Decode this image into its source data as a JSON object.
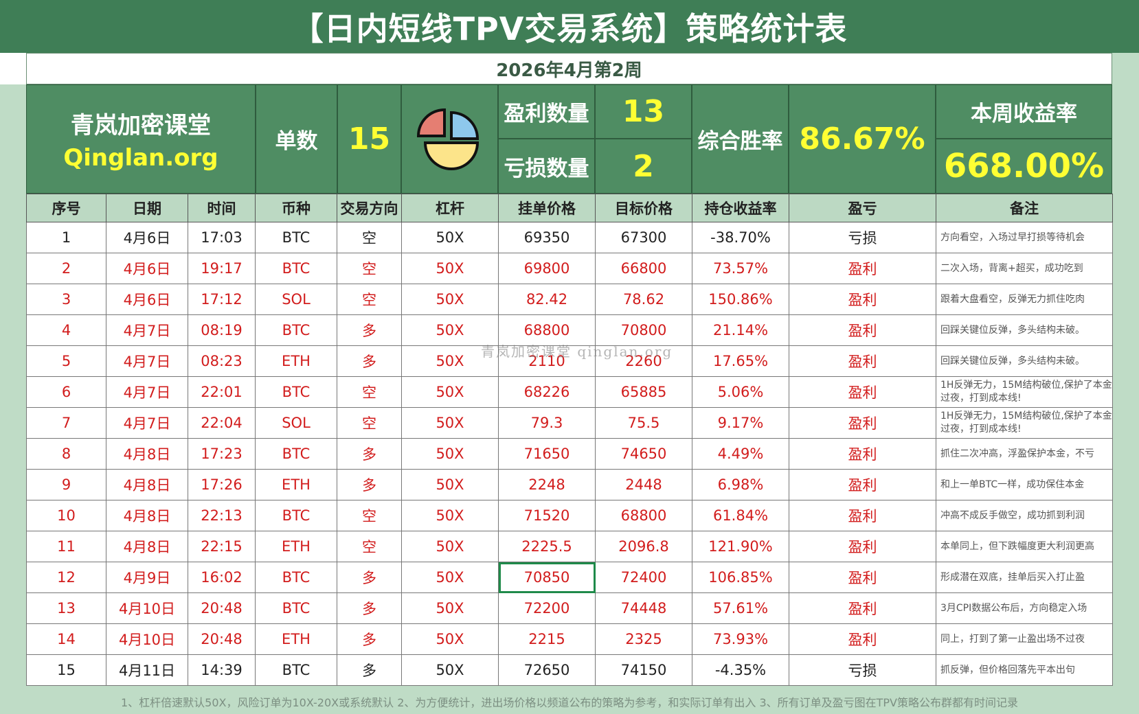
{
  "title": "【日内短线TPV交易系统】策略统计表",
  "week": "2026年4月第2周",
  "summary": {
    "brand_cn": "青岚加密课堂",
    "brand_en": "Qinglan.org",
    "orders_label": "单数",
    "orders_value": "15",
    "profit_count_label": "盈利数量",
    "profit_count_value": "13",
    "loss_count_label": "亏损数量",
    "loss_count_value": "2",
    "winrate_label": "综合胜率",
    "winrate_value": "86.67%",
    "weekly_return_label": "本周收益率",
    "weekly_return_value": "668.00%"
  },
  "columns": [
    "序号",
    "日期",
    "时间",
    "币种",
    "交易方向",
    "杠杆",
    "挂单价格",
    "目标价格",
    "持仓收益率",
    "盈亏",
    "备注"
  ],
  "rows": [
    {
      "no": "1",
      "date": "4月6日",
      "time": "17:03",
      "coin": "BTC",
      "dir": "空",
      "lev": "50X",
      "entry": "69350",
      "target": "67300",
      "ret": "-38.70%",
      "pl": "亏损",
      "note": "方向看空，入场过早打损等待机会",
      "win": false
    },
    {
      "no": "2",
      "date": "4月6日",
      "time": "19:17",
      "coin": "BTC",
      "dir": "空",
      "lev": "50X",
      "entry": "69800",
      "target": "66800",
      "ret": "73.57%",
      "pl": "盈利",
      "note": "二次入场，背离+超买，成功吃到",
      "win": true
    },
    {
      "no": "3",
      "date": "4月6日",
      "time": "17:12",
      "coin": "SOL",
      "dir": "空",
      "lev": "50X",
      "entry": "82.42",
      "target": "78.62",
      "ret": "150.86%",
      "pl": "盈利",
      "note": "跟着大盘看空，反弹无力抓住吃肉",
      "win": true
    },
    {
      "no": "4",
      "date": "4月7日",
      "time": "08:19",
      "coin": "BTC",
      "dir": "多",
      "lev": "50X",
      "entry": "68800",
      "target": "70800",
      "ret": "21.14%",
      "pl": "盈利",
      "note": "回踩关键位反弹，多头结构未破。",
      "win": true
    },
    {
      "no": "5",
      "date": "4月7日",
      "time": "08:23",
      "coin": "ETH",
      "dir": "多",
      "lev": "50X",
      "entry": "2110",
      "target": "2260",
      "ret": "17.65%",
      "pl": "盈利",
      "note": "回踩关键位反弹，多头结构未破。",
      "win": true
    },
    {
      "no": "6",
      "date": "4月7日",
      "time": "22:01",
      "coin": "BTC",
      "dir": "空",
      "lev": "50X",
      "entry": "68226",
      "target": "65885",
      "ret": "5.06%",
      "pl": "盈利",
      "note": "1H反弹无力，15M结构破位,保护了本金过夜，打到成本线!",
      "win": true
    },
    {
      "no": "7",
      "date": "4月7日",
      "time": "22:04",
      "coin": "SOL",
      "dir": "空",
      "lev": "50X",
      "entry": "79.3",
      "target": "75.5",
      "ret": "9.17%",
      "pl": "盈利",
      "note": "1H反弹无力，15M结构破位,保护了本金过夜，打到成本线!",
      "win": true
    },
    {
      "no": "8",
      "date": "4月8日",
      "time": "17:23",
      "coin": "BTC",
      "dir": "多",
      "lev": "50X",
      "entry": "71650",
      "target": "74650",
      "ret": "4.49%",
      "pl": "盈利",
      "note": "抓住二次冲高，浮盈保护本金，不亏",
      "win": true
    },
    {
      "no": "9",
      "date": "4月8日",
      "time": "17:26",
      "coin": "ETH",
      "dir": "多",
      "lev": "50X",
      "entry": "2248",
      "target": "2448",
      "ret": "6.98%",
      "pl": "盈利",
      "note": "和上一单BTC一样，成功保住本金",
      "win": true
    },
    {
      "no": "10",
      "date": "4月8日",
      "time": "22:13",
      "coin": "BTC",
      "dir": "空",
      "lev": "50X",
      "entry": "71520",
      "target": "68800",
      "ret": "61.84%",
      "pl": "盈利",
      "note": "冲高不成反手做空，成功抓到利润",
      "win": true
    },
    {
      "no": "11",
      "date": "4月8日",
      "time": "22:15",
      "coin": "ETH",
      "dir": "空",
      "lev": "50X",
      "entry": "2225.5",
      "target": "2096.8",
      "ret": "121.90%",
      "pl": "盈利",
      "note": "本单同上，但下跌幅度更大利润更高",
      "win": true
    },
    {
      "no": "12",
      "date": "4月9日",
      "time": "16:02",
      "coin": "BTC",
      "dir": "多",
      "lev": "50X",
      "entry": "70850",
      "target": "72400",
      "ret": "106.85%",
      "pl": "盈利",
      "note": "形成潜在双底，挂单后买入打止盈",
      "win": true
    },
    {
      "no": "13",
      "date": "4月10日",
      "time": "20:48",
      "coin": "BTC",
      "dir": "多",
      "lev": "50X",
      "entry": "72200",
      "target": "74448",
      "ret": "57.61%",
      "pl": "盈利",
      "note": "3月CPI数据公布后，方向稳定入场",
      "win": true
    },
    {
      "no": "14",
      "date": "4月10日",
      "time": "20:48",
      "coin": "ETH",
      "dir": "多",
      "lev": "50X",
      "entry": "2215",
      "target": "2325",
      "ret": "73.93%",
      "pl": "盈利",
      "note": "同上，打到了第一止盈出场不过夜",
      "win": true
    },
    {
      "no": "15",
      "date": "4月11日",
      "time": "14:39",
      "coin": "BTC",
      "dir": "多",
      "lev": "50X",
      "entry": "72650",
      "target": "74150",
      "ret": "-4.35%",
      "pl": "亏损",
      "note": "抓反弹，但价格回落先平本出句",
      "win": false
    }
  ],
  "watermark": "青岚加密课堂 qinglan.org",
  "footer": "1、杠杆倍速默认50X，风险订单为10X-20X或系统默认   2、为方便统计，进出场价格以频道公布的策略为参考，和实际订单有出入   3、所有订单及盈亏图在TPV策略公布群都有时间记录",
  "colors": {
    "header_green": "#3f7e56",
    "summary_green": "#4f8d63",
    "highlight_yellow": "#ffff33",
    "profit_red": "#d21c1c"
  },
  "icons": {
    "summary": "pie-chart-icon"
  }
}
